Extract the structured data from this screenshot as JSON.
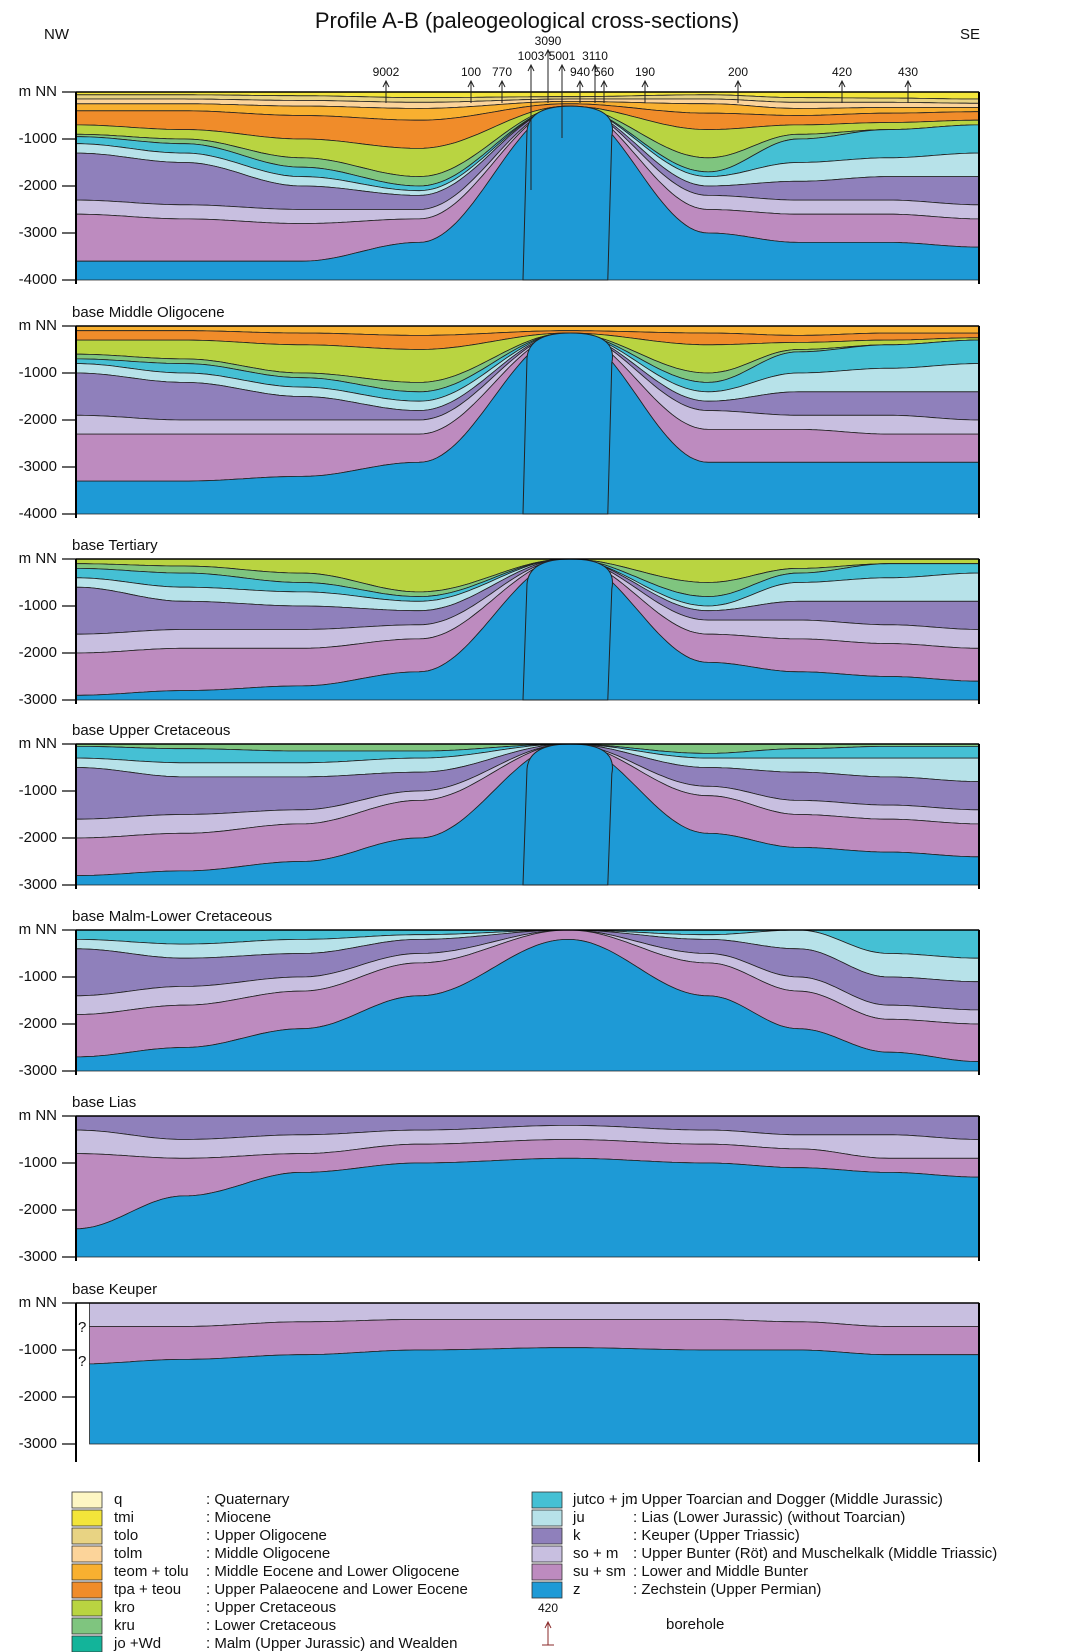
{
  "header": {
    "title": "Profile A-B (paleogeological cross-sections)",
    "left_label": "NW",
    "right_label": "SE"
  },
  "boreholes": [
    "9002",
    "100",
    "770",
    "3090",
    "1003",
    "5001",
    "940",
    "3110",
    "560",
    "190",
    "200",
    "420",
    "430"
  ],
  "panels": [
    {
      "depth_labels": [
        "m NN",
        "-1000",
        "-2000",
        "-3000",
        "-4000"
      ]
    },
    {
      "title": "base Middle Oligocene",
      "depth_labels": [
        "m NN",
        "-1000",
        "-2000",
        "-3000",
        "-4000"
      ]
    },
    {
      "title": "base Tertiary",
      "depth_labels": [
        "m NN",
        "-1000",
        "-2000",
        "-3000"
      ]
    },
    {
      "title": "base Upper Cretaceous",
      "depth_labels": [
        "m NN",
        "-1000",
        "-2000",
        "-3000"
      ]
    },
    {
      "title": "base Malm-Lower Cretaceous",
      "depth_labels": [
        "m NN",
        "-1000",
        "-2000",
        "-3000"
      ]
    },
    {
      "title": "base Lias",
      "depth_labels": [
        "m NN",
        "-1000",
        "-2000",
        "-3000"
      ]
    },
    {
      "title": "base Keuper",
      "depth_labels": [
        "m NN",
        "-1000",
        "-2000",
        "-3000"
      ],
      "markers": [
        "?",
        "?"
      ]
    }
  ],
  "legend": {
    "units": [
      {
        "code": "q",
        "description": ": Quaternary",
        "color": "#fdf6c3"
      },
      {
        "code": "tmi",
        "description": ": Miocene",
        "color": "#f3e53a"
      },
      {
        "code": "tolo",
        "description": ": Upper Oligocene",
        "color": "#e8d383"
      },
      {
        "code": "tolm",
        "description": ": Middle Oligocene",
        "color": "#fcd49a"
      },
      {
        "code": "teom + tolu",
        "description": ": Middle Eocene and Lower Oligocene",
        "color": "#f8b030"
      },
      {
        "code": "tpa + teou",
        "description": ": Upper Palaeocene and Lower Eocene",
        "color": "#f08c2a"
      },
      {
        "code": "kro",
        "description": ": Upper Cretaceous",
        "color": "#b9d441"
      },
      {
        "code": "kru",
        "description": ": Lower Cretaceous",
        "color": "#7fc57f"
      },
      {
        "code": "jo +Wd",
        "description": ": Malm (Upper Jurassic) and Wealden",
        "color": "#13b49a"
      },
      {
        "code": "jutco +  jm",
        "description": ": Upper Toarcian and Dogger (Middle Jurassic)",
        "color": "#45c0d4"
      },
      {
        "code": "ju",
        "description": ": Lias (Lower Jurassic) (without Toarcian)",
        "color": "#b7e2e9"
      },
      {
        "code": "k",
        "description": ": Keuper (Upper Triassic)",
        "color": "#8f80bb"
      },
      {
        "code": "so + m",
        "description": ": Upper Bunter (Röt) and Muschelkalk (Middle Triassic)",
        "color": "#c8bfe0"
      },
      {
        "code": "su + sm",
        "description": ": Lower and Middle Bunter",
        "color": "#bd8bbf"
      },
      {
        "code": "z",
        "description": ": Zechstein (Upper Permian)",
        "color": "#1e9ad6"
      }
    ],
    "borehole": {
      "number": "420",
      "label": "borehole"
    }
  }
}
